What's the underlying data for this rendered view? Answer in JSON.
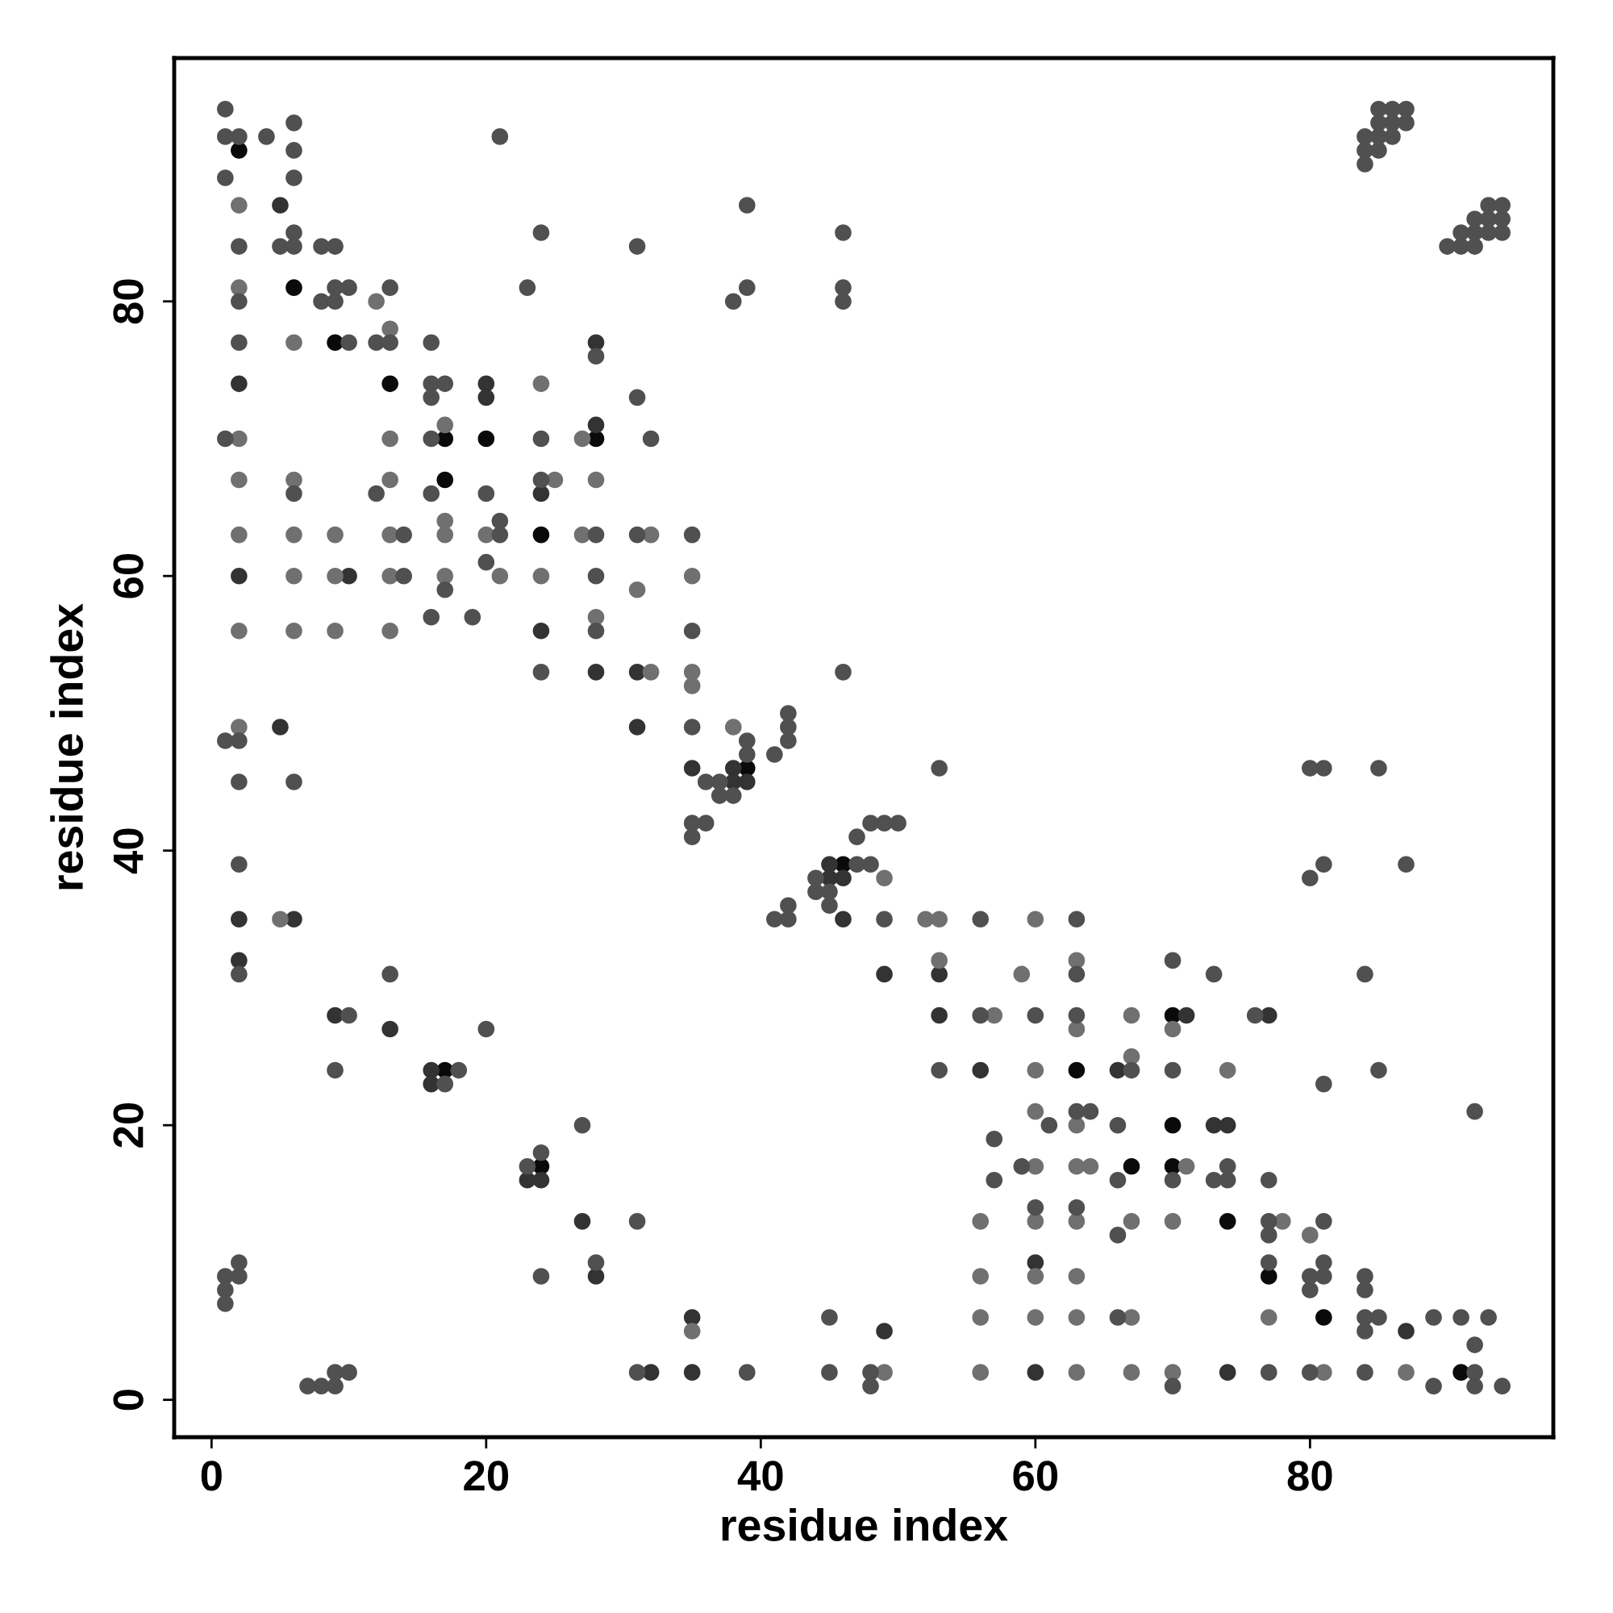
{
  "chart_data": {
    "type": "scatter",
    "xlabel": "residue index",
    "ylabel": "residue index",
    "xlim": [
      -2.72,
      97.72
    ],
    "ylim": [
      -2.72,
      97.72
    ],
    "xticks": [
      0,
      20,
      40,
      60,
      80
    ],
    "yticks": [
      0,
      20,
      40,
      60,
      80
    ],
    "grid": false,
    "marker": "circle",
    "series": [
      {
        "color": "#0a0a0a",
        "x": [
          2,
          6,
          9,
          13,
          17,
          17,
          17,
          20,
          24,
          28,
          39,
          91,
          81,
          77,
          74,
          70,
          67,
          24,
          70,
          63,
          70,
          46
        ],
        "values": [
          91,
          81,
          77,
          74,
          70,
          67,
          24,
          70,
          63,
          70,
          46,
          2,
          6,
          9,
          13,
          17,
          17,
          17,
          20,
          24,
          28,
          39
        ]
      },
      {
        "color": "#333333",
        "x": [
          2,
          2,
          2,
          2,
          5,
          5,
          6,
          9,
          10,
          13,
          16,
          16,
          20,
          20,
          24,
          24,
          28,
          28,
          28,
          31,
          31,
          35,
          38,
          38,
          39,
          74,
          60,
          35,
          32,
          87,
          49,
          35,
          28,
          60,
          27,
          24,
          23,
          74,
          73,
          66,
          56,
          77,
          71,
          53,
          53,
          49,
          46,
          46,
          45,
          45
        ],
        "values": [
          74,
          60,
          35,
          32,
          87,
          49,
          35,
          28,
          60,
          27,
          24,
          23,
          74,
          73,
          66,
          56,
          77,
          71,
          53,
          53,
          49,
          46,
          46,
          45,
          45,
          2,
          2,
          2,
          2,
          5,
          5,
          6,
          9,
          10,
          13,
          16,
          16,
          20,
          20,
          24,
          24,
          28,
          28,
          28,
          31,
          31,
          35,
          38,
          38,
          39
        ]
      },
      {
        "color": "#707070",
        "x": [
          2,
          2,
          2,
          2,
          2,
          2,
          2,
          5,
          6,
          6,
          6,
          6,
          6,
          9,
          9,
          9,
          12,
          13,
          13,
          13,
          13,
          13,
          13,
          17,
          17,
          17,
          17,
          20,
          21,
          24,
          24,
          25,
          27,
          27,
          28,
          28,
          31,
          32,
          32,
          35,
          35,
          35,
          38,
          87,
          81,
          70,
          67,
          63,
          56,
          49,
          35,
          77,
          67,
          63,
          60,
          56,
          63,
          60,
          56,
          80,
          78,
          70,
          67,
          63,
          60,
          56,
          71,
          64,
          63,
          60,
          63,
          60,
          74,
          60,
          67,
          70,
          63,
          67,
          57,
          59,
          63,
          53,
          60,
          53,
          52,
          49
        ],
        "values": [
          87,
          81,
          70,
          67,
          63,
          56,
          49,
          35,
          77,
          67,
          63,
          60,
          56,
          63,
          60,
          56,
          80,
          78,
          70,
          67,
          63,
          60,
          56,
          71,
          64,
          63,
          60,
          63,
          60,
          74,
          60,
          67,
          70,
          63,
          67,
          57,
          59,
          63,
          53,
          60,
          53,
          52,
          49,
          2,
          2,
          2,
          2,
          2,
          2,
          2,
          5,
          6,
          6,
          6,
          6,
          6,
          9,
          9,
          9,
          12,
          13,
          13,
          13,
          13,
          13,
          13,
          17,
          17,
          17,
          17,
          20,
          21,
          24,
          24,
          25,
          27,
          27,
          28,
          28,
          31,
          32,
          32,
          35,
          35,
          35,
          38
        ]
      },
      {
        "color": "#505050",
        "x": [
          1,
          1,
          1,
          1,
          1,
          1,
          1,
          1,
          2,
          2,
          2,
          2,
          2,
          2,
          2,
          2,
          2,
          2,
          4,
          5,
          6,
          6,
          6,
          6,
          6,
          6,
          6,
          8,
          8,
          9,
          9,
          9,
          9,
          10,
          10,
          10,
          12,
          12,
          13,
          13,
          13,
          14,
          14,
          16,
          16,
          16,
          16,
          16,
          16,
          17,
          17,
          17,
          18,
          19,
          20,
          20,
          20,
          21,
          21,
          21,
          23,
          24,
          24,
          24,
          24,
          28,
          28,
          28,
          28,
          31,
          31,
          31,
          32,
          35,
          35,
          35,
          35,
          35,
          36,
          36,
          37,
          37,
          38,
          38,
          39,
          39,
          39,
          39,
          41,
          42,
          42,
          42,
          46,
          46,
          46,
          46,
          84,
          84,
          84,
          85,
          85,
          85,
          85,
          86,
          86,
          86,
          87,
          87,
          94,
          92,
          89,
          70,
          48,
          9,
          8,
          7,
          92,
          84,
          80,
          77,
          48,
          45,
          39,
          31,
          10,
          9,
          92,
          84,
          93,
          91,
          89,
          85,
          84,
          66,
          45,
          84,
          80,
          84,
          81,
          80,
          24,
          81,
          77,
          28,
          77,
          66,
          81,
          77,
          31,
          63,
          60,
          77,
          74,
          73,
          70,
          66,
          57,
          74,
          59,
          23,
          24,
          57,
          66,
          61,
          27,
          92,
          64,
          63,
          81,
          85,
          70,
          67,
          53,
          76,
          63,
          60,
          56,
          84,
          73,
          63,
          70,
          63,
          56,
          49,
          42,
          41,
          45,
          42,
          45,
          44,
          80,
          44,
          87,
          81,
          48,
          47,
          47,
          50,
          49,
          48,
          85,
          81,
          80,
          53,
          90,
          91,
          92,
          91,
          92,
          93,
          94,
          92,
          93,
          94,
          93,
          94
        ],
        "values": [
          94,
          92,
          89,
          70,
          48,
          9,
          8,
          7,
          92,
          84,
          80,
          77,
          48,
          45,
          39,
          31,
          10,
          9,
          92,
          84,
          93,
          91,
          89,
          85,
          84,
          66,
          45,
          84,
          80,
          84,
          81,
          80,
          24,
          81,
          77,
          28,
          77,
          66,
          81,
          77,
          31,
          63,
          60,
          77,
          74,
          73,
          70,
          66,
          57,
          74,
          59,
          23,
          24,
          57,
          66,
          61,
          27,
          92,
          64,
          63,
          81,
          85,
          70,
          67,
          53,
          76,
          63,
          60,
          56,
          84,
          73,
          63,
          70,
          63,
          56,
          49,
          42,
          41,
          45,
          42,
          45,
          44,
          80,
          44,
          87,
          81,
          48,
          47,
          47,
          50,
          49,
          48,
          85,
          81,
          80,
          53,
          90,
          91,
          92,
          91,
          92,
          93,
          94,
          92,
          93,
          94,
          93,
          94,
          1,
          1,
          1,
          1,
          1,
          1,
          1,
          1,
          2,
          2,
          2,
          2,
          2,
          2,
          2,
          2,
          2,
          2,
          4,
          5,
          6,
          6,
          6,
          6,
          6,
          6,
          6,
          8,
          8,
          9,
          9,
          9,
          9,
          10,
          10,
          10,
          12,
          12,
          13,
          13,
          13,
          14,
          14,
          16,
          16,
          16,
          16,
          16,
          16,
          17,
          17,
          17,
          18,
          19,
          20,
          20,
          20,
          21,
          21,
          21,
          23,
          24,
          24,
          24,
          24,
          28,
          28,
          28,
          28,
          31,
          31,
          31,
          32,
          35,
          35,
          35,
          35,
          35,
          36,
          36,
          37,
          37,
          38,
          38,
          39,
          39,
          39,
          39,
          41,
          42,
          42,
          42,
          46,
          46,
          46,
          46,
          84,
          84,
          84,
          85,
          85,
          85,
          85,
          86,
          86,
          86,
          87,
          87
        ]
      }
    ]
  }
}
